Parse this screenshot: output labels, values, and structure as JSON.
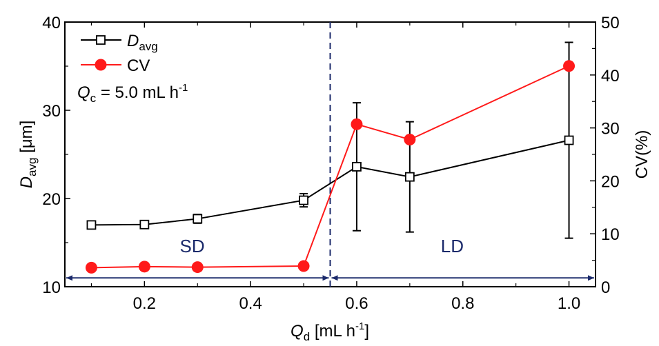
{
  "chart_data": {
    "type": "line",
    "title": "",
    "xlabel": {
      "main": "Q",
      "sub": "d",
      "unit_pre": " [mL h",
      "sup": "-1",
      "unit_post": "]"
    },
    "ylabel_left": {
      "main": "D",
      "sub": "avg",
      "unit": " [μm]"
    },
    "ylabel_right": "CV(%)",
    "xlim": [
      0.05,
      1.05
    ],
    "ylim_left": [
      10,
      40
    ],
    "ylim_right": [
      0,
      50
    ],
    "x_ticks": [
      0.2,
      0.4,
      0.6,
      0.8,
      1.0
    ],
    "x_tick_labels": [
      "0.2",
      "0.4",
      "0.6",
      "0.8",
      "1.0"
    ],
    "x_minor_ticks": [
      0.1,
      0.3,
      0.5,
      0.7,
      0.9
    ],
    "y_left_ticks": [
      10,
      20,
      30,
      40
    ],
    "y_left_tick_labels": [
      "10",
      "20",
      "30",
      "40"
    ],
    "y_left_minor_ticks": [
      15,
      25,
      35
    ],
    "y_right_ticks": [
      0,
      10,
      20,
      30,
      40,
      50
    ],
    "y_right_tick_labels": [
      "0",
      "10",
      "20",
      "30",
      "40",
      "50"
    ],
    "y_right_minor_ticks": [
      5,
      15,
      25,
      35,
      45
    ],
    "grid": false,
    "legend_position": "top-left",
    "series": [
      {
        "name": "D_avg",
        "legend_main": "D",
        "legend_sub": "avg",
        "axis": "left",
        "color": "#000000",
        "marker": "open-square",
        "x": [
          0.1,
          0.2,
          0.3,
          0.5,
          0.6,
          0.7,
          1.0
        ],
        "values": [
          17.0,
          17.05,
          17.7,
          19.8,
          23.6,
          22.45,
          26.6
        ],
        "error": [
          0.4,
          0.45,
          0.5,
          0.75,
          7.25,
          6.25,
          11.1
        ]
      },
      {
        "name": "CV",
        "legend_main": "CV",
        "legend_sub": "",
        "axis": "right",
        "color": "#ff1a1a",
        "marker": "filled-circle",
        "x": [
          0.1,
          0.2,
          0.3,
          0.5,
          0.6,
          0.7,
          1.0
        ],
        "values": [
          3.6,
          3.8,
          3.7,
          3.9,
          30.7,
          27.8,
          41.7
        ]
      }
    ],
    "annotations": {
      "condition": {
        "main": "Q",
        "sub": "c",
        "text": " = 5.0 mL h",
        "sup": "-1"
      },
      "divider_x": 0.55,
      "divider_color": "#1b2a6b",
      "regions": [
        {
          "label": "SD",
          "x_from": 0.05,
          "x_to": 0.55,
          "label_x": 0.29
        },
        {
          "label": "LD",
          "x_from": 0.55,
          "x_to": 1.05,
          "label_x": 0.78
        }
      ],
      "region_label_y": 13.9,
      "arrow_y": 11.0
    }
  }
}
